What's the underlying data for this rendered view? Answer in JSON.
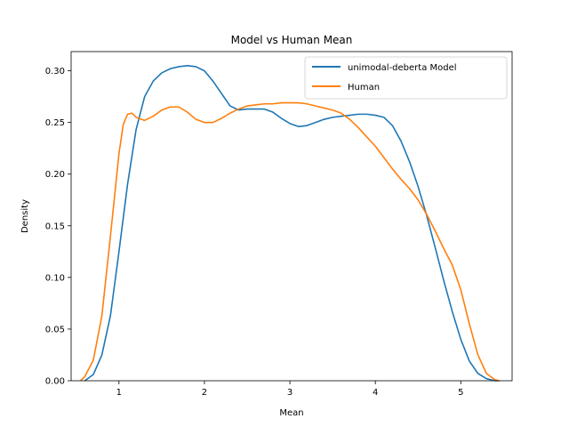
{
  "chart_data": {
    "type": "line",
    "title": "Model vs Human Mean",
    "xlabel": "Mean",
    "ylabel": "Density",
    "xlim": [
      0.44,
      5.6
    ],
    "ylim": [
      0.0,
      0.3186
    ],
    "xticks": [
      1,
      2,
      3,
      4,
      5
    ],
    "xtick_labels": [
      "1",
      "2",
      "3",
      "4",
      "5"
    ],
    "yticks": [
      0.0,
      0.05,
      0.1,
      0.15,
      0.2,
      0.25,
      0.3
    ],
    "ytick_labels": [
      "0.00",
      "0.05",
      "0.10",
      "0.15",
      "0.20",
      "0.25",
      "0.30"
    ],
    "grid": false,
    "legend_position": "upper right",
    "series": [
      {
        "name": "unimodal-deberta Model",
        "color": "#1f77b4",
        "x": [
          0.6,
          0.7,
          0.8,
          0.9,
          1.0,
          1.1,
          1.2,
          1.3,
          1.4,
          1.5,
          1.6,
          1.7,
          1.8,
          1.9,
          2.0,
          2.1,
          2.2,
          2.3,
          2.4,
          2.5,
          2.6,
          2.7,
          2.8,
          2.9,
          3.0,
          3.1,
          3.2,
          3.3,
          3.4,
          3.5,
          3.6,
          3.7,
          3.8,
          3.9,
          4.0,
          4.1,
          4.2,
          4.3,
          4.4,
          4.5,
          4.6,
          4.7,
          4.8,
          4.9,
          5.0,
          5.1,
          5.2,
          5.3,
          5.4,
          5.45
        ],
        "y": [
          0.0,
          0.006,
          0.025,
          0.063,
          0.125,
          0.19,
          0.243,
          0.275,
          0.29,
          0.298,
          0.302,
          0.304,
          0.305,
          0.304,
          0.3,
          0.29,
          0.278,
          0.266,
          0.262,
          0.263,
          0.263,
          0.263,
          0.26,
          0.254,
          0.249,
          0.246,
          0.247,
          0.25,
          0.253,
          0.255,
          0.256,
          0.257,
          0.258,
          0.258,
          0.257,
          0.255,
          0.247,
          0.232,
          0.212,
          0.188,
          0.16,
          0.129,
          0.097,
          0.067,
          0.04,
          0.019,
          0.007,
          0.002,
          0.0,
          0.0
        ]
      },
      {
        "name": "Human",
        "color": "#ff7f0e",
        "x": [
          0.55,
          0.6,
          0.7,
          0.8,
          0.9,
          1.0,
          1.05,
          1.1,
          1.15,
          1.2,
          1.3,
          1.4,
          1.5,
          1.6,
          1.7,
          1.8,
          1.9,
          2.0,
          2.1,
          2.2,
          2.3,
          2.4,
          2.5,
          2.6,
          2.7,
          2.8,
          2.9,
          3.0,
          3.1,
          3.2,
          3.3,
          3.4,
          3.5,
          3.6,
          3.7,
          3.8,
          3.9,
          4.0,
          4.1,
          4.2,
          4.3,
          4.4,
          4.5,
          4.6,
          4.7,
          4.8,
          4.9,
          5.0,
          5.1,
          5.2,
          5.3,
          5.4,
          5.45
        ],
        "y": [
          0.0,
          0.004,
          0.02,
          0.063,
          0.14,
          0.22,
          0.248,
          0.258,
          0.259,
          0.255,
          0.252,
          0.256,
          0.262,
          0.265,
          0.265,
          0.26,
          0.253,
          0.25,
          0.25,
          0.254,
          0.259,
          0.263,
          0.266,
          0.267,
          0.268,
          0.268,
          0.269,
          0.269,
          0.269,
          0.268,
          0.266,
          0.264,
          0.262,
          0.259,
          0.253,
          0.245,
          0.236,
          0.227,
          0.216,
          0.205,
          0.195,
          0.186,
          0.175,
          0.161,
          0.145,
          0.128,
          0.112,
          0.088,
          0.055,
          0.025,
          0.007,
          0.001,
          0.0
        ]
      }
    ]
  }
}
